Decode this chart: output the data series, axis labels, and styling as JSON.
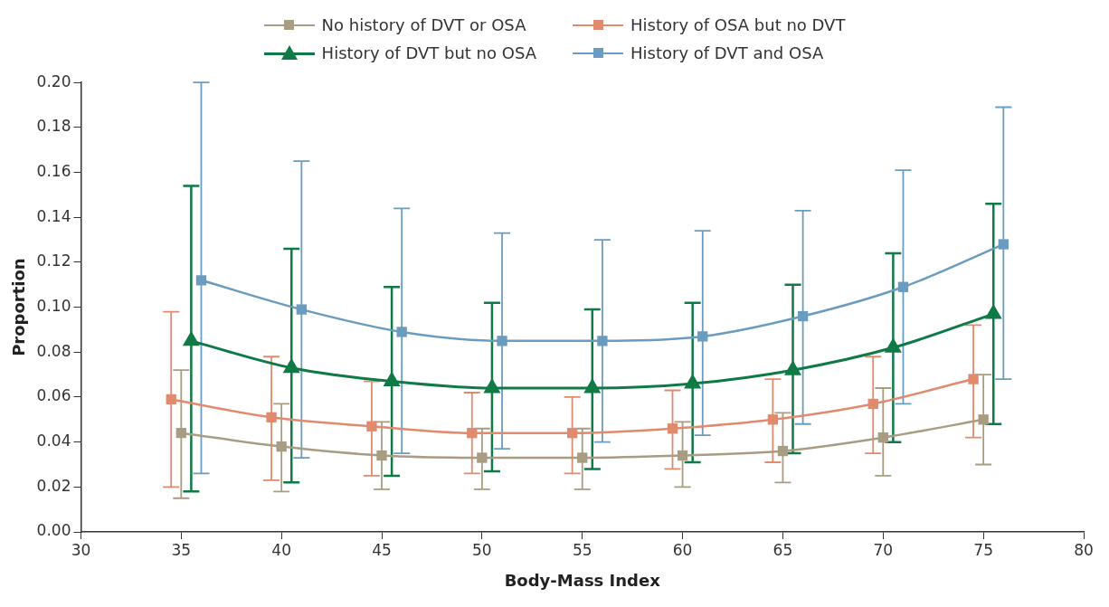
{
  "chart_data": {
    "type": "line",
    "xlabel": "Body-Mass Index",
    "ylabel": "Proportion",
    "xlim": [
      30,
      80
    ],
    "xticks": [
      30,
      35,
      40,
      45,
      50,
      55,
      60,
      65,
      70,
      75,
      80
    ],
    "ylim": [
      0,
      0.2
    ],
    "yticks": [
      {
        "value": 0,
        "label": "0.00"
      },
      {
        "value": 0.02,
        "label": "0.02"
      },
      {
        "value": 0.04,
        "label": "0.04"
      },
      {
        "value": 0.06,
        "label": "0.06"
      },
      {
        "value": 0.08,
        "label": "0.08"
      },
      {
        "value": 0.1,
        "label": "0.10"
      },
      {
        "value": 0.12,
        "label": "0.12"
      },
      {
        "value": 0.14,
        "label": "0.14"
      },
      {
        "value": 0.16,
        "label": "0.16"
      },
      {
        "value": 0.18,
        "label": "0.18"
      },
      {
        "value": 0.2,
        "label": "0.20"
      }
    ],
    "grid": false,
    "legend": "top",
    "series": [
      {
        "name": "No history of DVT or OSA",
        "color": "#a89c83",
        "marker": "square",
        "x": [
          35,
          40,
          45,
          50,
          55,
          60,
          65,
          70,
          75
        ],
        "values": [
          0.044,
          0.038,
          0.034,
          0.033,
          0.033,
          0.034,
          0.036,
          0.042,
          0.05
        ],
        "errors": [
          [
            0.015,
            0.072
          ],
          [
            0.018,
            0.057
          ],
          [
            0.019,
            0.049
          ],
          [
            0.019,
            0.046
          ],
          [
            0.019,
            0.046
          ],
          [
            0.02,
            0.049
          ],
          [
            0.022,
            0.053
          ],
          [
            0.025,
            0.064
          ],
          [
            0.03,
            0.07
          ]
        ]
      },
      {
        "name": "History of OSA but no DVT",
        "color": "#e08a6e",
        "marker": "square",
        "x": [
          34.5,
          39.5,
          44.5,
          49.5,
          54.5,
          59.5,
          64.5,
          69.5,
          74.5
        ],
        "values": [
          0.059,
          0.051,
          0.047,
          0.044,
          0.044,
          0.046,
          0.05,
          0.057,
          0.068
        ],
        "errors": [
          [
            0.02,
            0.098
          ],
          [
            0.023,
            0.078
          ],
          [
            0.025,
            0.067
          ],
          [
            0.026,
            0.062
          ],
          [
            0.026,
            0.06
          ],
          [
            0.028,
            0.063
          ],
          [
            0.031,
            0.068
          ],
          [
            0.035,
            0.078
          ],
          [
            0.042,
            0.092
          ]
        ]
      },
      {
        "name": "History of DVT but no OSA",
        "color": "#0f7a45",
        "marker": "triangle",
        "x": [
          35.5,
          40.5,
          45.5,
          50.5,
          55.5,
          60.5,
          65.5,
          70.5,
          75.5
        ],
        "values": [
          0.085,
          0.073,
          0.067,
          0.064,
          0.064,
          0.066,
          0.072,
          0.082,
          0.097
        ],
        "errors": [
          [
            0.018,
            0.154
          ],
          [
            0.022,
            0.126
          ],
          [
            0.025,
            0.109
          ],
          [
            0.027,
            0.102
          ],
          [
            0.028,
            0.099
          ],
          [
            0.031,
            0.102
          ],
          [
            0.035,
            0.11
          ],
          [
            0.04,
            0.124
          ],
          [
            0.048,
            0.146
          ]
        ]
      },
      {
        "name": "History of DVT and OSA",
        "color": "#6a9cbf",
        "marker": "square",
        "x": [
          36,
          41,
          46,
          51,
          56,
          61,
          66,
          71,
          76
        ],
        "values": [
          0.112,
          0.099,
          0.089,
          0.085,
          0.085,
          0.087,
          0.096,
          0.109,
          0.128
        ],
        "errors": [
          [
            0.026,
            0.2
          ],
          [
            0.033,
            0.165
          ],
          [
            0.035,
            0.144
          ],
          [
            0.037,
            0.133
          ],
          [
            0.04,
            0.13
          ],
          [
            0.043,
            0.134
          ],
          [
            0.048,
            0.143
          ],
          [
            0.057,
            0.161
          ],
          [
            0.068,
            0.189
          ]
        ]
      }
    ]
  }
}
